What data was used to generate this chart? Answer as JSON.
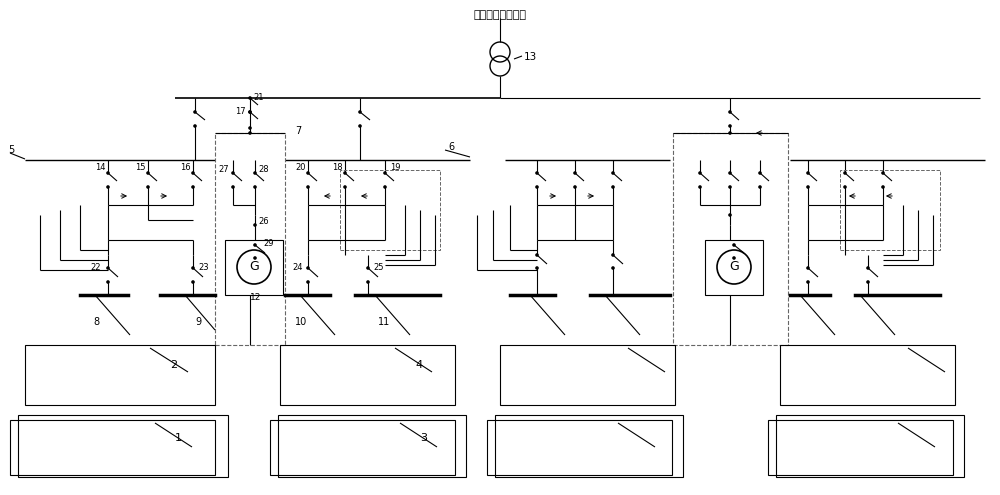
{
  "title": "引自厂外高压线路",
  "label_13": "13",
  "background_color": "#ffffff",
  "line_color": "#000000",
  "fig_width": 10.0,
  "fig_height": 4.95
}
